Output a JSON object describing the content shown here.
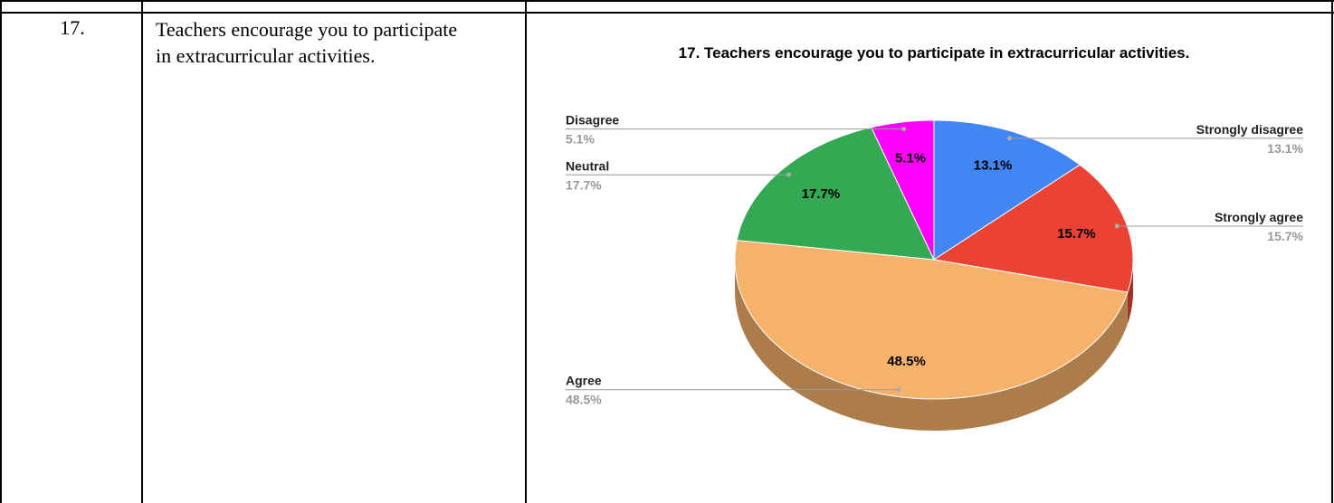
{
  "table": {
    "rows": [
      [
        "17.",
        "Teachers encourage you to participate in extracurricular activities."
      ]
    ]
  },
  "chart_data": {
    "type": "pie",
    "three_d": true,
    "title": "17. Teachers encourage you to participate in extracurricular activities.",
    "categories": [
      "Strongly disagree",
      "Strongly agree",
      "Agree",
      "Neutral",
      "Disagree"
    ],
    "values": [
      13.1,
      15.7,
      48.5,
      17.7,
      5.1
    ],
    "value_labels": [
      "13.1%",
      "15.7%",
      "48.5%",
      "17.7%",
      "5.1%"
    ],
    "colors": [
      "#4285f4",
      "#ea4335",
      "#f6b26b",
      "#34a853",
      "#ff00ff"
    ]
  }
}
